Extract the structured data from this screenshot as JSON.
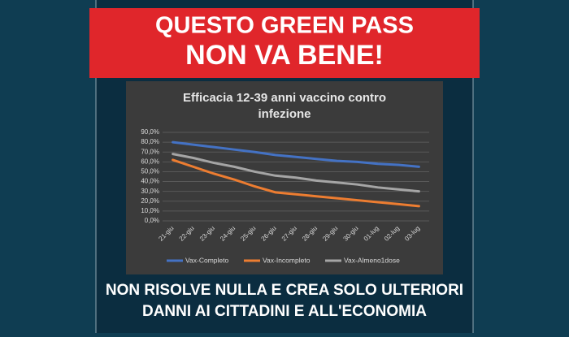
{
  "banner": {
    "line1": "QUESTO GREEN PASS",
    "line2": "NON VA BENE!"
  },
  "footer": {
    "line1": "NON RISOLVE NULLA E CREA SOLO ULTERIORI",
    "line2": "DANNI AI CITTADINI E ALL'ECONOMIA"
  },
  "chart_data": {
    "type": "line",
    "title": "Efficacia 12-39 anni vaccino contro",
    "title2": "infezione",
    "categories": [
      "21-giu",
      "22-giu",
      "23-giu",
      "24-giu",
      "25-giu",
      "26-giu",
      "27-giu",
      "28-giu",
      "29-giu",
      "30-giu",
      "01-lug",
      "02-lug",
      "03-lug"
    ],
    "series": [
      {
        "name": "Vax-Completo",
        "color": "#4472c4",
        "values": [
          80,
          77.5,
          75,
          72.5,
          70,
          67,
          65,
          63,
          61,
          60,
          58,
          57,
          55
        ]
      },
      {
        "name": "Vax-Incompleto",
        "color": "#ed7d31",
        "values": [
          62,
          55,
          48,
          42,
          35,
          29,
          27,
          25,
          23,
          21,
          19,
          17,
          15
        ]
      },
      {
        "name": "Vax-Almeno1dose",
        "color": "#a5a5a5",
        "values": [
          68,
          64,
          59,
          55,
          50,
          46,
          44,
          41,
          39,
          37,
          34,
          32,
          30
        ]
      }
    ],
    "ylim": [
      0,
      90
    ],
    "yticks": [
      {
        "value": 0,
        "label": "0,0%"
      },
      {
        "value": 10,
        "label": "10,0%"
      },
      {
        "value": 20,
        "label": "20,0%"
      },
      {
        "value": 30,
        "label": "30,0%"
      },
      {
        "value": 40,
        "label": "40,0%"
      },
      {
        "value": 50,
        "label": "50,0%"
      },
      {
        "value": 60,
        "label": "60,0%"
      },
      {
        "value": 70,
        "label": "70,0%"
      },
      {
        "value": 80,
        "label": "80,0%"
      },
      {
        "value": 90,
        "label": "90,0%"
      }
    ],
    "grid": true,
    "legend": "bottom"
  }
}
